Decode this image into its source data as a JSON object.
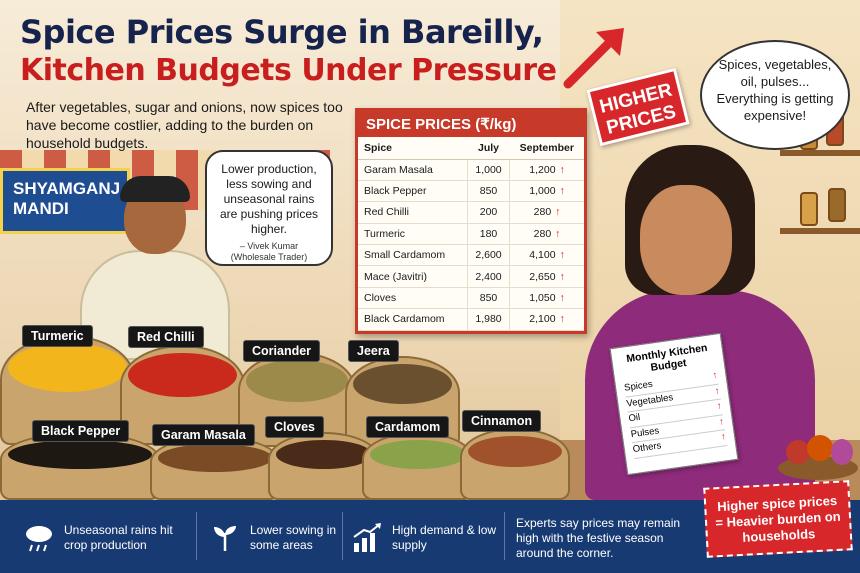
{
  "headline": {
    "line1": "Spice Prices Surge in Bareilly,",
    "line2": "Kitchen Budgets Under Pressure"
  },
  "subhead": "After vegetables, sugar and onions, now spices too have become costlier, adding to the burden on household budgets.",
  "badge": "HIGHER PRICES",
  "mandi_sign": "SHYAMGANJ MANDI",
  "trader_quote": {
    "text": "Lower production, less sowing and unseasonal rains are pushing prices higher.",
    "name": "– Vivek Kumar",
    "role": "(Wholesale Trader)"
  },
  "woman_quote": "Spices, vegetables, oil, pulses... Everything is getting expensive!",
  "price_table": {
    "title": "SPICE PRICES (₹/kg)",
    "headers": [
      "Spice",
      "July",
      "September"
    ],
    "rows": [
      {
        "spice": "Garam Masala",
        "july": "1,000",
        "september": "1,200"
      },
      {
        "spice": "Black Pepper",
        "july": "850",
        "september": "1,000"
      },
      {
        "spice": "Red Chilli",
        "july": "200",
        "september": "280"
      },
      {
        "spice": "Turmeric",
        "july": "180",
        "september": "280"
      },
      {
        "spice": "Small Cardamom",
        "july": "2,600",
        "september": "4,100"
      },
      {
        "spice": "Mace (Javitri)",
        "july": "2,400",
        "september": "2,650"
      },
      {
        "spice": "Cloves",
        "july": "850",
        "september": "1,050"
      },
      {
        "spice": "Black Cardamom",
        "july": "1,980",
        "september": "2,100"
      }
    ],
    "up_arrow": "↑"
  },
  "sacks": [
    {
      "label": "Turmeric",
      "color": "#f2b51c"
    },
    {
      "label": "Red Chilli",
      "color": "#c92a1c"
    },
    {
      "label": "Coriander",
      "color": "#9c8a4a"
    },
    {
      "label": "Jeera",
      "color": "#6b5030"
    },
    {
      "label": "Black Pepper",
      "color": "#1e1812"
    },
    {
      "label": "Garam Masala",
      "color": "#7a4b24"
    },
    {
      "label": "Cloves",
      "color": "#4a2a18"
    },
    {
      "label": "Cardamom",
      "color": "#8aa34a"
    },
    {
      "label": "Cinnamon",
      "color": "#a0522d"
    }
  ],
  "budget_note": {
    "title": "Monthly Kitchen Budget",
    "items": [
      "Spices",
      "Vegetables",
      "Oil",
      "Pulses",
      "Others"
    ]
  },
  "facts": [
    {
      "icon": "rain-cloud-icon",
      "text": "Unseasonal rains hit crop production"
    },
    {
      "icon": "sprout-icon",
      "text": "Lower sowing in some areas"
    },
    {
      "icon": "rising-chart-icon",
      "text": "High demand & low supply"
    },
    {
      "icon": "",
      "text": "Experts say prices may remain high with the festive season around the corner."
    }
  ],
  "conclusion": "Higher spice prices = Heavier burden on households",
  "colors": {
    "navy": "#173a72",
    "headline_navy": "#16234d",
    "headline_red": "#c81e1e",
    "accent_red": "#d8272a"
  }
}
